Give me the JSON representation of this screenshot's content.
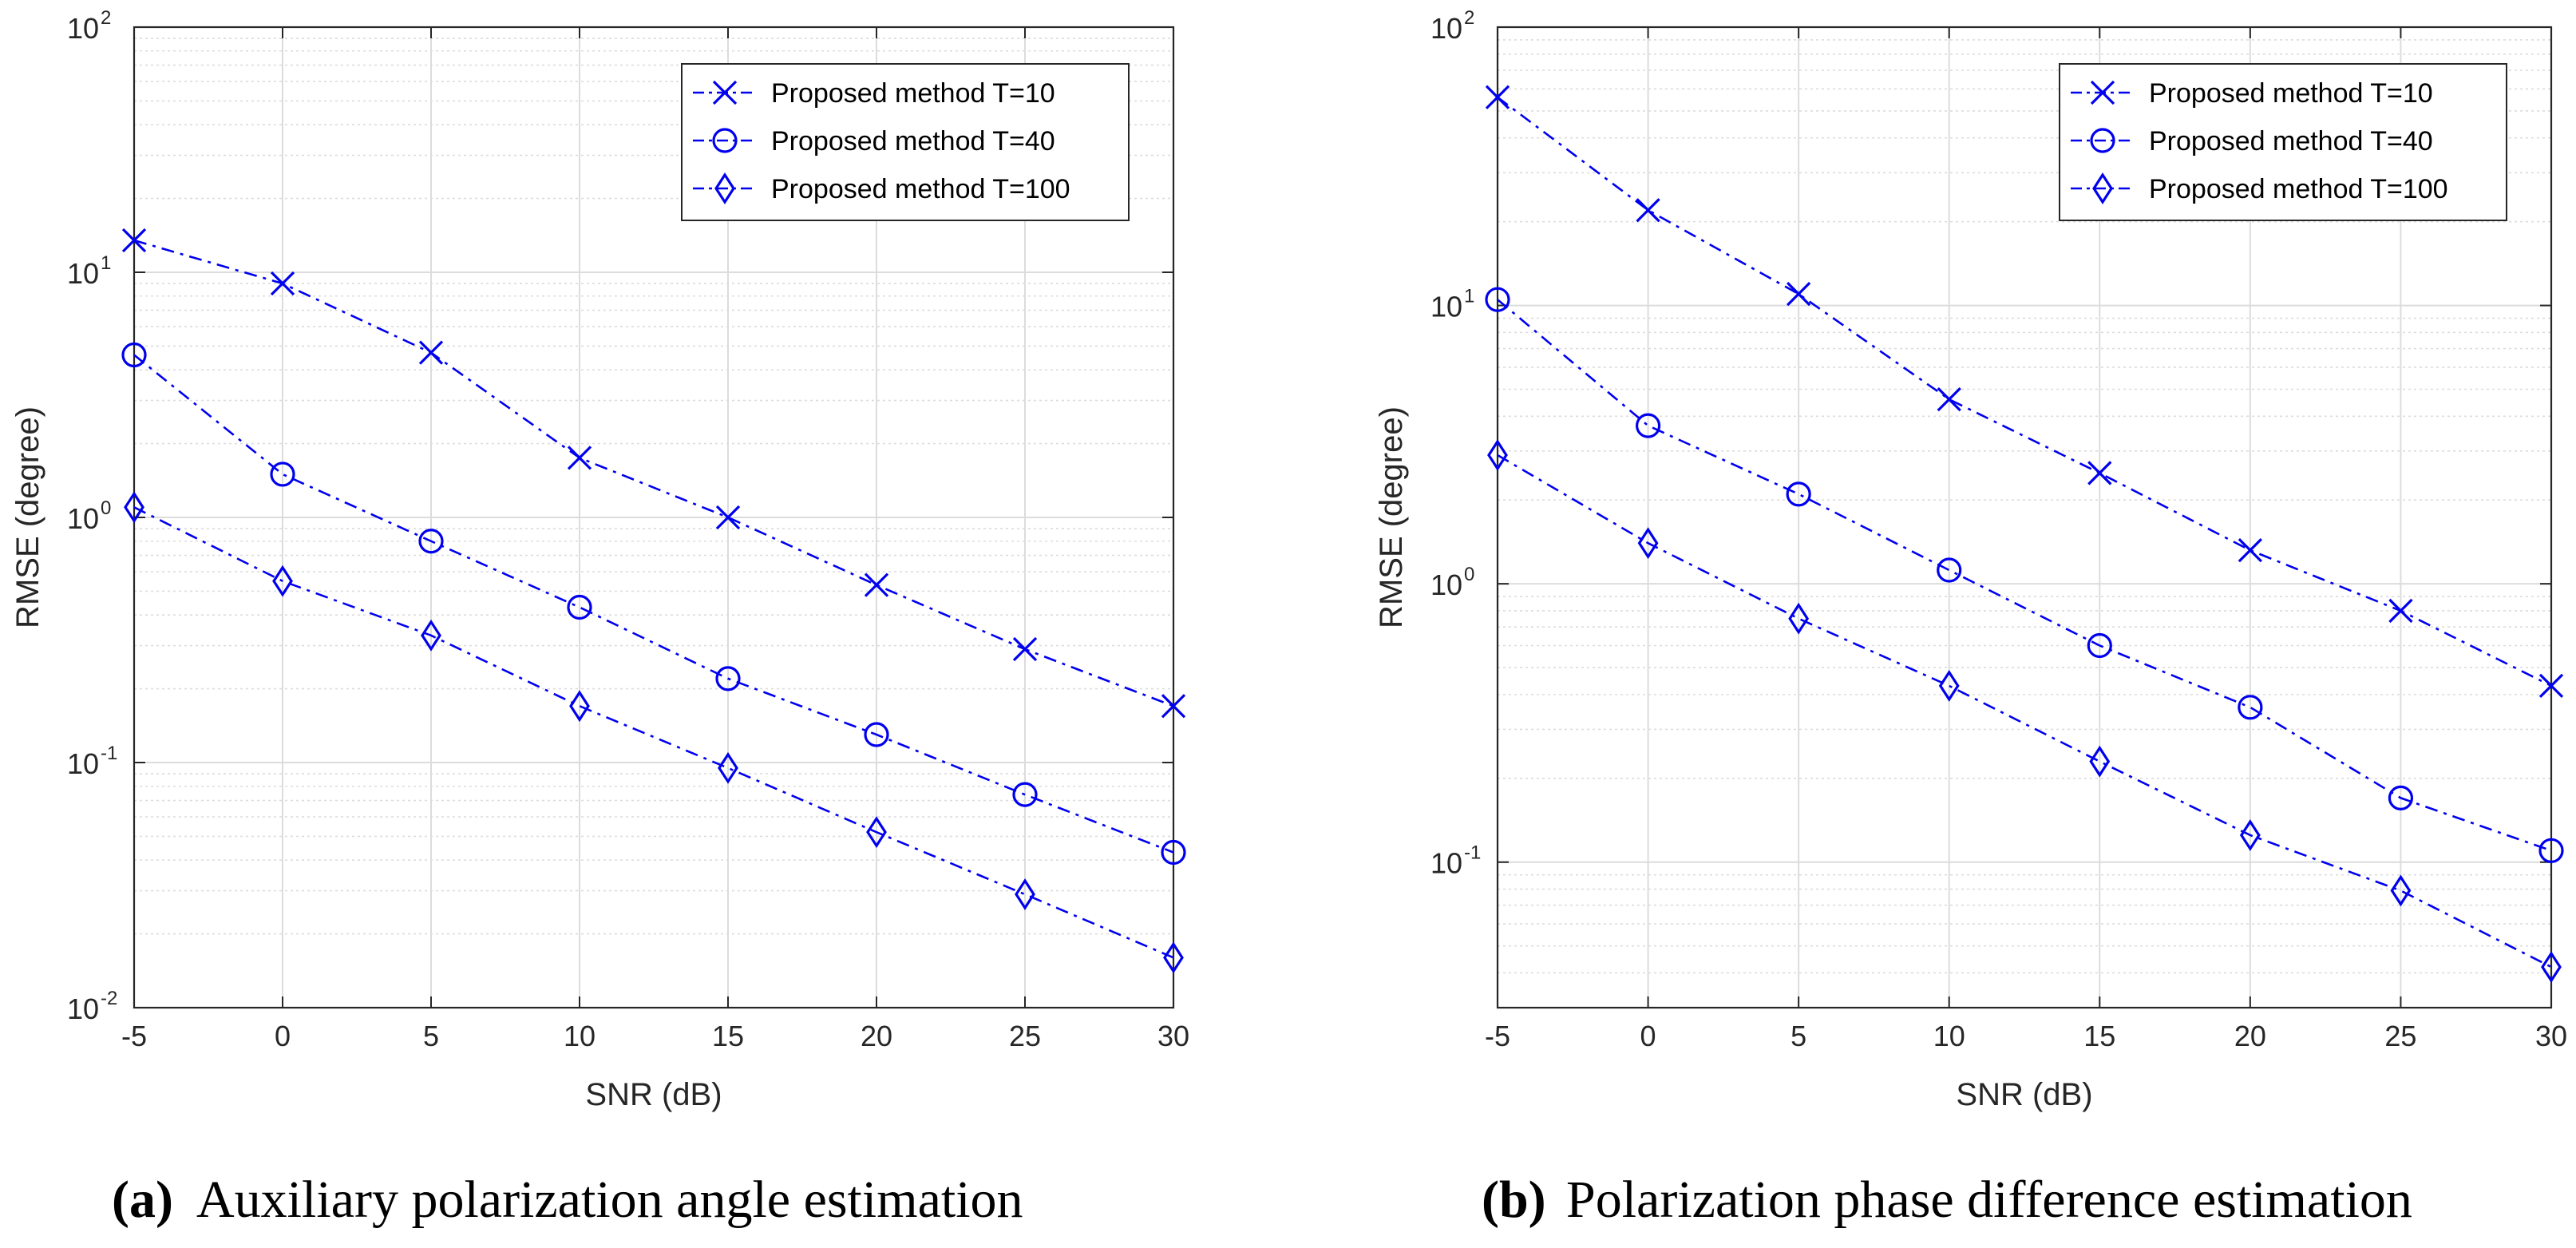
{
  "chart_data": [
    {
      "type": "line",
      "panel_label": "(a)",
      "caption": "Auxiliary polarization angle estimation",
      "xlabel": "SNR (dB)",
      "ylabel": "RMSE (degree)",
      "yscale": "log",
      "x": [
        -5,
        0,
        5,
        10,
        15,
        20,
        25,
        30
      ],
      "xlim": [
        -5,
        30
      ],
      "ylim": [
        0.01,
        100
      ],
      "xticks": [
        "-5",
        "0",
        "5",
        "10",
        "15",
        "20",
        "25",
        "30"
      ],
      "yticks": [
        {
          "base": "10",
          "exp": "-2"
        },
        {
          "base": "10",
          "exp": "-1"
        },
        {
          "base": "10",
          "exp": "0"
        },
        {
          "base": "10",
          "exp": "1"
        },
        {
          "base": "10",
          "exp": "2"
        }
      ],
      "ytick_values": [
        0.01,
        0.1,
        1,
        10,
        100
      ],
      "grid": true,
      "legend_position": "top-right",
      "series": [
        {
          "name": "Proposed method T=10",
          "marker": "x",
          "values": [
            13.5,
            9.0,
            4.7,
            1.75,
            1.0,
            0.53,
            0.29,
            0.17
          ]
        },
        {
          "name": "Proposed method T=40",
          "marker": "o",
          "values": [
            4.6,
            1.5,
            0.8,
            0.43,
            0.22,
            0.13,
            0.074,
            0.043
          ]
        },
        {
          "name": "Proposed method T=100",
          "marker": "d",
          "values": [
            1.1,
            0.55,
            0.33,
            0.17,
            0.095,
            0.052,
            0.029,
            0.016
          ]
        }
      ]
    },
    {
      "type": "line",
      "panel_label": "(b)",
      "caption": "Polarization phase difference estimation",
      "xlabel": "SNR (dB)",
      "ylabel": "RMSE (degree)",
      "yscale": "log",
      "x": [
        -5,
        0,
        5,
        10,
        15,
        20,
        25,
        30
      ],
      "xlim": [
        -5,
        30
      ],
      "ylim": [
        0.03,
        100
      ],
      "xticks": [
        "-5",
        "0",
        "5",
        "10",
        "15",
        "20",
        "25",
        "30"
      ],
      "yticks": [
        {
          "base": "10",
          "exp": "-1"
        },
        {
          "base": "10",
          "exp": "0"
        },
        {
          "base": "10",
          "exp": "1"
        },
        {
          "base": "10",
          "exp": "2"
        }
      ],
      "ytick_values": [
        0.1,
        1,
        10,
        100
      ],
      "grid": true,
      "legend_position": "top-right",
      "series": [
        {
          "name": "Proposed method T=10",
          "marker": "x",
          "values": [
            56,
            22,
            11,
            4.6,
            2.5,
            1.32,
            0.8,
            0.43
          ]
        },
        {
          "name": "Proposed method T=40",
          "marker": "o",
          "values": [
            10.5,
            3.7,
            2.1,
            1.12,
            0.6,
            0.36,
            0.17,
            0.11
          ]
        },
        {
          "name": "Proposed method T=100",
          "marker": "d",
          "values": [
            2.9,
            1.4,
            0.75,
            0.43,
            0.23,
            0.125,
            0.079,
            0.042
          ]
        }
      ]
    }
  ],
  "colors": {
    "series": "#0000ee",
    "axis": "#262626",
    "grid": "#dcdcdc"
  }
}
